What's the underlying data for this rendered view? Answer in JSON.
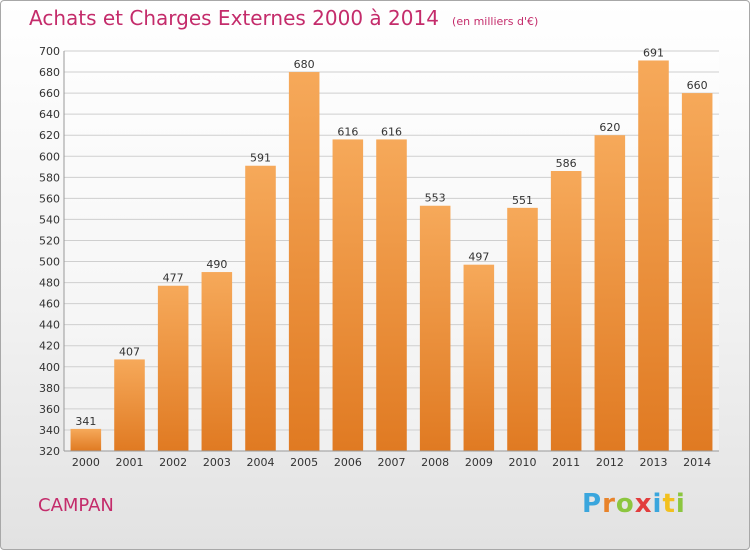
{
  "title": "Achats et Charges Externes 2000 à 2014",
  "unit_note": "(en milliers d'€)",
  "commune": "CAMPAN",
  "logo": {
    "letters": [
      "P",
      "r",
      "o",
      "x",
      "i",
      "t",
      "i"
    ],
    "colors": [
      "#3aa6dd",
      "#e8832a",
      "#8cc63f",
      "#e23d3d",
      "#3aa6dd",
      "#f2c01e",
      "#8cc63f"
    ]
  },
  "colors": {
    "bar_light": "#f6a95a",
    "bar_dark": "#e07a22",
    "title": "#c42c6b",
    "grid": "#cfcfcf"
  },
  "chart_data": {
    "type": "bar",
    "title": "Achats et Charges Externes 2000 à 2014",
    "categories": [
      "2000",
      "2001",
      "2002",
      "2003",
      "2004",
      "2005",
      "2006",
      "2007",
      "2008",
      "2009",
      "2010",
      "2011",
      "2012",
      "2013",
      "2014"
    ],
    "values": [
      341,
      407,
      477,
      490,
      591,
      680,
      616,
      616,
      553,
      497,
      551,
      586,
      620,
      691,
      660
    ],
    "ylim": [
      320,
      700
    ],
    "ytick_step": 20,
    "grid": true,
    "xlabel": "",
    "ylabel": ""
  }
}
